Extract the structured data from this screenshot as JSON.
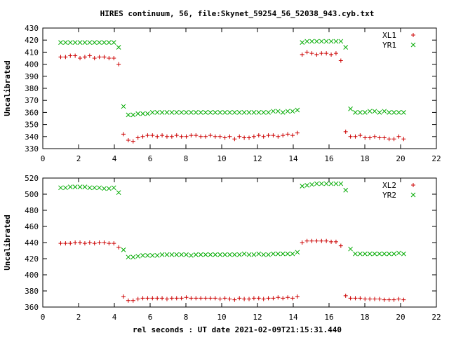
{
  "title": "HIRES continuum, 56, file:Skynet_59254_56_52038_943.cyb.txt",
  "xlabel": "rel seconds : UT date 2021-02-09T21:15:31.440",
  "colors": {
    "red": "#cc0000",
    "green": "#00aa00"
  },
  "chart_data": [
    {
      "type": "scatter",
      "ylabel": "Uncalibrated",
      "xlim": [
        0,
        22
      ],
      "ylim": [
        330,
        430
      ],
      "xticks": [
        0,
        2,
        4,
        6,
        8,
        10,
        12,
        14,
        16,
        18,
        20,
        22
      ],
      "yticks": [
        330,
        340,
        350,
        360,
        370,
        380,
        390,
        400,
        410,
        420,
        430
      ],
      "legend_position": "top-right",
      "series": [
        {
          "name": "XL1",
          "marker": "plus",
          "color": "#cc0000",
          "x": [
            1.0,
            1.27,
            1.54,
            1.81,
            2.08,
            2.35,
            2.62,
            2.89,
            3.16,
            3.43,
            3.7,
            3.97,
            4.24,
            4.51,
            4.78,
            5.05,
            5.32,
            5.59,
            5.86,
            6.13,
            6.4,
            6.67,
            6.94,
            7.21,
            7.48,
            7.75,
            8.02,
            8.29,
            8.56,
            8.83,
            9.1,
            9.37,
            9.64,
            9.91,
            10.18,
            10.45,
            10.72,
            10.99,
            11.26,
            11.53,
            11.8,
            12.07,
            12.34,
            12.61,
            12.88,
            13.15,
            13.42,
            13.69,
            13.96,
            14.23,
            14.5,
            14.77,
            15.04,
            15.31,
            15.58,
            15.85,
            16.12,
            16.39,
            16.66,
            16.93,
            17.2,
            17.47,
            17.74,
            18.01,
            18.28,
            18.55,
            18.82,
            19.09,
            19.36,
            19.63,
            19.9,
            20.17
          ],
          "y": [
            406,
            406,
            407,
            407,
            405,
            406,
            407,
            405,
            406,
            406,
            405,
            405,
            400,
            342,
            337,
            336,
            339,
            340,
            341,
            341,
            340,
            341,
            340,
            340,
            341,
            340,
            340,
            341,
            341,
            340,
            340,
            341,
            340,
            340,
            339,
            340,
            338,
            340,
            339,
            339,
            340,
            341,
            340,
            341,
            341,
            340,
            341,
            342,
            341,
            343,
            408,
            410,
            409,
            408,
            409,
            409,
            408,
            409,
            403,
            344,
            340,
            340,
            341,
            339,
            339,
            340,
            339,
            339,
            338,
            338,
            340,
            338
          ]
        },
        {
          "name": "YR1",
          "marker": "cross",
          "color": "#00aa00",
          "x": [
            1.0,
            1.27,
            1.54,
            1.81,
            2.08,
            2.35,
            2.62,
            2.89,
            3.16,
            3.43,
            3.7,
            3.97,
            4.24,
            4.51,
            4.78,
            5.05,
            5.32,
            5.59,
            5.86,
            6.13,
            6.4,
            6.67,
            6.94,
            7.21,
            7.48,
            7.75,
            8.02,
            8.29,
            8.56,
            8.83,
            9.1,
            9.37,
            9.64,
            9.91,
            10.18,
            10.45,
            10.72,
            10.99,
            11.26,
            11.53,
            11.8,
            12.07,
            12.34,
            12.61,
            12.88,
            13.15,
            13.42,
            13.69,
            13.96,
            14.23,
            14.5,
            14.77,
            15.04,
            15.31,
            15.58,
            15.85,
            16.12,
            16.39,
            16.66,
            16.93,
            17.2,
            17.47,
            17.74,
            18.01,
            18.28,
            18.55,
            18.82,
            19.09,
            19.36,
            19.63,
            19.9,
            20.17
          ],
          "y": [
            418,
            418,
            418,
            418,
            418,
            418,
            418,
            418,
            418,
            418,
            418,
            418,
            414,
            365,
            358,
            358,
            359,
            359,
            359,
            360,
            360,
            360,
            360,
            360,
            360,
            360,
            360,
            360,
            360,
            360,
            360,
            360,
            360,
            360,
            360,
            360,
            360,
            360,
            360,
            360,
            360,
            360,
            360,
            360,
            361,
            361,
            360,
            361,
            361,
            362,
            418,
            419,
            419,
            419,
            419,
            419,
            419,
            419,
            419,
            414,
            363,
            360,
            360,
            360,
            361,
            361,
            360,
            361,
            360,
            360,
            360,
            360
          ]
        }
      ]
    },
    {
      "type": "scatter",
      "ylabel": "Uncalibrated",
      "xlim": [
        0,
        22
      ],
      "ylim": [
        360,
        520
      ],
      "xticks": [
        0,
        2,
        4,
        6,
        8,
        10,
        12,
        14,
        16,
        18,
        20,
        22
      ],
      "yticks": [
        360,
        380,
        400,
        420,
        440,
        460,
        480,
        500,
        520
      ],
      "legend_position": "top-right",
      "series": [
        {
          "name": "XL2",
          "marker": "plus",
          "color": "#cc0000",
          "x": [
            1.0,
            1.27,
            1.54,
            1.81,
            2.08,
            2.35,
            2.62,
            2.89,
            3.16,
            3.43,
            3.7,
            3.97,
            4.24,
            4.51,
            4.78,
            5.05,
            5.32,
            5.59,
            5.86,
            6.13,
            6.4,
            6.67,
            6.94,
            7.21,
            7.48,
            7.75,
            8.02,
            8.29,
            8.56,
            8.83,
            9.1,
            9.37,
            9.64,
            9.91,
            10.18,
            10.45,
            10.72,
            10.99,
            11.26,
            11.53,
            11.8,
            12.07,
            12.34,
            12.61,
            12.88,
            13.15,
            13.42,
            13.69,
            13.96,
            14.23,
            14.5,
            14.77,
            15.04,
            15.31,
            15.58,
            15.85,
            16.12,
            16.39,
            16.66,
            16.93,
            17.2,
            17.47,
            17.74,
            18.01,
            18.28,
            18.55,
            18.82,
            19.09,
            19.36,
            19.63,
            19.9,
            20.17
          ],
          "y": [
            439,
            439,
            439,
            440,
            440,
            439,
            440,
            439,
            440,
            440,
            439,
            439,
            434,
            373,
            368,
            368,
            370,
            371,
            371,
            371,
            371,
            371,
            370,
            371,
            371,
            371,
            372,
            371,
            371,
            371,
            371,
            371,
            371,
            370,
            371,
            370,
            369,
            371,
            370,
            370,
            371,
            371,
            370,
            371,
            371,
            372,
            371,
            372,
            371,
            373,
            440,
            442,
            442,
            442,
            442,
            442,
            441,
            441,
            436,
            374,
            371,
            371,
            371,
            370,
            370,
            370,
            370,
            369,
            369,
            369,
            370,
            369
          ]
        },
        {
          "name": "YR2",
          "marker": "cross",
          "color": "#00aa00",
          "x": [
            1.0,
            1.27,
            1.54,
            1.81,
            2.08,
            2.35,
            2.62,
            2.89,
            3.16,
            3.43,
            3.7,
            3.97,
            4.24,
            4.51,
            4.78,
            5.05,
            5.32,
            5.59,
            5.86,
            6.13,
            6.4,
            6.67,
            6.94,
            7.21,
            7.48,
            7.75,
            8.02,
            8.29,
            8.56,
            8.83,
            9.1,
            9.37,
            9.64,
            9.91,
            10.18,
            10.45,
            10.72,
            10.99,
            11.26,
            11.53,
            11.8,
            12.07,
            12.34,
            12.61,
            12.88,
            13.15,
            13.42,
            13.69,
            13.96,
            14.23,
            14.5,
            14.77,
            15.04,
            15.31,
            15.58,
            15.85,
            16.12,
            16.39,
            16.66,
            16.93,
            17.2,
            17.47,
            17.74,
            18.01,
            18.28,
            18.55,
            18.82,
            19.09,
            19.36,
            19.63,
            19.9,
            20.17
          ],
          "y": [
            508,
            508,
            509,
            509,
            509,
            509,
            508,
            508,
            508,
            507,
            507,
            508,
            502,
            431,
            422,
            422,
            423,
            424,
            424,
            424,
            424,
            425,
            425,
            425,
            425,
            425,
            425,
            424,
            425,
            425,
            425,
            425,
            425,
            425,
            425,
            425,
            425,
            425,
            426,
            425,
            425,
            426,
            425,
            425,
            426,
            426,
            426,
            426,
            426,
            428,
            510,
            511,
            512,
            513,
            513,
            513,
            513,
            513,
            513,
            505,
            432,
            426,
            426,
            426,
            426,
            426,
            426,
            426,
            426,
            426,
            427,
            426
          ]
        }
      ]
    }
  ]
}
